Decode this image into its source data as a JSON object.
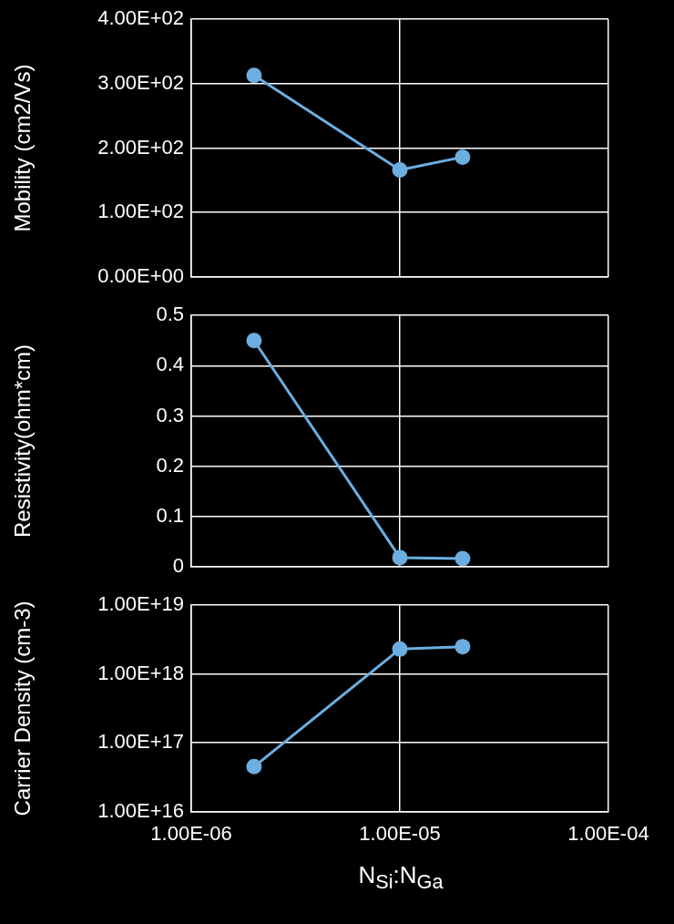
{
  "chart_data": [
    {
      "type": "line",
      "ylabel": "Mobility (cm2/Vs)",
      "x": [
        2e-06,
        1e-05,
        2e-05
      ],
      "log": "x",
      "xlim": [
        1e-06,
        0.0001
      ],
      "xticks": [
        {
          "value": 1e-06,
          "label": null
        },
        {
          "value": 1e-05,
          "label": null
        },
        {
          "value": 0.0001,
          "label": null
        }
      ],
      "ylim": [
        0,
        400
      ],
      "yticks": [
        {
          "value": 0,
          "label": "0.00E+00"
        },
        {
          "value": 100,
          "label": "1.00E+02"
        },
        {
          "value": 200,
          "label": "2.00E+02"
        },
        {
          "value": 300,
          "label": "3.00E+02"
        },
        {
          "value": 400,
          "label": "4.00E+02"
        }
      ],
      "tick_labels": "y",
      "grid": true,
      "legend": false,
      "marker": "circle",
      "line_style": "solid",
      "series": [
        {
          "color": "#6caee0",
          "values": [
            313,
            166,
            186
          ]
        }
      ]
    },
    {
      "type": "line",
      "ylabel": "Resistivity(ohm*cm)",
      "x": [
        2e-06,
        1e-05,
        2e-05
      ],
      "log": "x",
      "xlim": [
        1e-06,
        0.0001
      ],
      "xticks": [
        {
          "value": 1e-06,
          "label": null
        },
        {
          "value": 1e-05,
          "label": null
        },
        {
          "value": 0.0001,
          "label": null
        }
      ],
      "ylim": [
        0,
        0.5
      ],
      "yticks": [
        0,
        0.1,
        0.2,
        0.3,
        0.4,
        0.5
      ],
      "tick_labels": "y",
      "grid": true,
      "legend": false,
      "marker": "circle",
      "line_style": "solid",
      "series": [
        {
          "color": "#6caee0",
          "values": [
            0.45,
            0.018,
            0.016
          ]
        }
      ]
    },
    {
      "type": "line",
      "ylabel": "Carrier Density (cm-3)",
      "xlabel": "N$_{Si}$:N$_{Ga}$",
      "x": [
        2e-06,
        1e-05,
        2e-05
      ],
      "log": "xy",
      "xlim": [
        1e-06,
        0.0001
      ],
      "xticks": [
        {
          "value": 1e-06,
          "label": "1.00E-06"
        },
        {
          "value": 1e-05,
          "label": "1.00E-05"
        },
        {
          "value": 0.0001,
          "label": "1.00E-04"
        }
      ],
      "ylim": [
        1e+16,
        1e+19
      ],
      "yticks": [
        {
          "value": 1e+16,
          "label": "1.00E+16"
        },
        {
          "value": 1e+17,
          "label": "1.00E+17"
        },
        {
          "value": 1e+18,
          "label": "1.00E+18"
        },
        {
          "value": 1e+19,
          "label": "1.00E+19"
        }
      ],
      "grid": true,
      "legend": false,
      "marker": "circle",
      "line_style": "solid",
      "series": [
        {
          "color": "#6caee0",
          "values": [
            4.5e+16,
            2.3e+18,
            2.5e+18
          ]
        }
      ]
    }
  ]
}
